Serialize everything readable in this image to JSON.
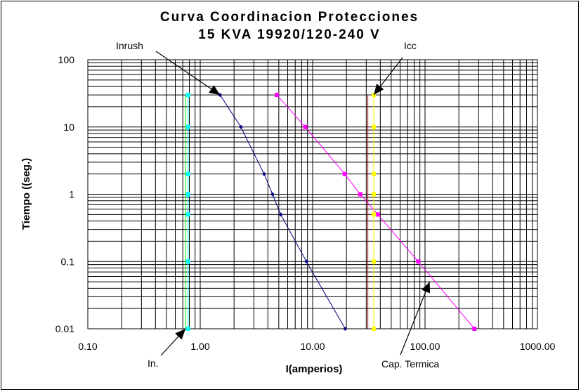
{
  "chart_data": {
    "type": "line",
    "title_line1": "Curva Coordinacion Protecciones",
    "title_line2": "15 KVA 19920/120-240 V",
    "xlabel": "I(amperios)",
    "ylabel": "Tiempo ((seg.)",
    "x_scale": "log",
    "y_scale": "log",
    "xlim": [
      0.1,
      1000
    ],
    "ylim": [
      0.01,
      100
    ],
    "grid": true,
    "x_ticks": [
      "0.10",
      "1.00",
      "10.00",
      "100.00",
      "1000.00"
    ],
    "y_ticks": [
      "100",
      "10",
      "1",
      "0.1",
      "0.01"
    ],
    "series": [
      {
        "color": "#00ffff",
        "marker": "square",
        "x": [
          0.78,
          0.78,
          0.78,
          0.78,
          0.78,
          0.78,
          0.78
        ],
        "y": [
          30,
          10,
          2,
          1,
          0.5,
          0.1,
          0.01
        ]
      },
      {
        "color": "#00ff00",
        "marker": "none",
        "x": [
          0.74,
          0.74
        ],
        "y": [
          30,
          0.01
        ]
      },
      {
        "color": "#000080",
        "marker": "diamond",
        "x": [
          1.5,
          2.3,
          3.7,
          4.4,
          5.2,
          8.8,
          19.5
        ],
        "y": [
          30,
          10,
          2,
          1,
          0.5,
          0.1,
          0.01
        ]
      },
      {
        "color": "#ff00ff",
        "marker": "square",
        "x": [
          4.8,
          8.6,
          19.3,
          26.5,
          38,
          87,
          275
        ],
        "y": [
          30,
          10,
          2,
          1,
          0.5,
          0.1,
          0.01
        ]
      },
      {
        "color": "#ffff00",
        "marker": "square",
        "x": [
          35,
          35,
          35,
          35,
          35,
          35,
          35
        ],
        "y": [
          30,
          10,
          2,
          1,
          0.5,
          0.1,
          0.01
        ]
      },
      {
        "color": "#aa0000",
        "marker": "none",
        "x": [
          31,
          31
        ],
        "y": [
          30,
          0.01
        ]
      }
    ],
    "annotations": [
      {
        "text": "Inrush",
        "target_x": 1.5,
        "target_y": 30
      },
      {
        "text": "Icc",
        "target_x": 35,
        "target_y": 30
      },
      {
        "text": "In.",
        "target_x": 0.74,
        "target_y": 0.01
      },
      {
        "text": "Cap. Termica",
        "target_x": 110,
        "target_y": 0.05
      }
    ]
  }
}
